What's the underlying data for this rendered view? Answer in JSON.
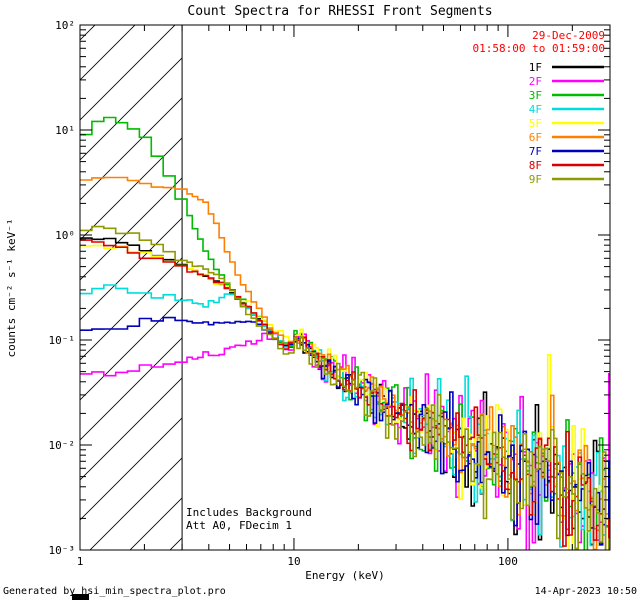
{
  "title": "Count Spectra for RHESSI Front Segments",
  "header": {
    "date": "29-Dec-2009",
    "time_range": "01:58:00 to 01:59:00",
    "color": "#ff0000"
  },
  "annotations": [
    "Includes Background",
    "Att A0, FDecim 1"
  ],
  "footer": {
    "left": "Generated by hsi_min_spectra_plot.pro",
    "right": "14-Apr-2023 10:50"
  },
  "chart_data": {
    "type": "line",
    "title": "Count Spectra for RHESSI Front Segments",
    "xlabel": "Energy (keV)",
    "ylabel": "counts cm⁻² s⁻¹ keV⁻¹",
    "xlog": true,
    "ylog": true,
    "grid": false,
    "legend_position": "top-right",
    "xlim": [
      1,
      300
    ],
    "ylim": [
      0.001,
      100
    ],
    "xticks": [
      {
        "v": 1,
        "label": "1"
      },
      {
        "v": 10,
        "label": "10"
      },
      {
        "v": 100,
        "label": "100"
      }
    ],
    "yticks": [
      {
        "v": 100,
        "label": "10²"
      },
      {
        "v": 10,
        "label": "10¹"
      },
      {
        "v": 1,
        "label": "10⁰"
      },
      {
        "v": 0.1,
        "label": "10⁻¹"
      },
      {
        "v": 0.01,
        "label": "10⁻²"
      },
      {
        "v": 0.001,
        "label": "10⁻³"
      }
    ],
    "hatch_region": {
      "x0": 1,
      "x1": 3
    },
    "bins": {
      "low": 18,
      "mid": 40,
      "high": 70,
      "break1": 3,
      "break2": 10
    },
    "noise": {
      "seed": 20091229,
      "lo_dex": 0.012,
      "hi_dex": 0.34,
      "start_keV": 7
    },
    "tail": [
      [
        5,
        0.3
      ],
      [
        6,
        0.21
      ],
      [
        7,
        0.15
      ],
      [
        8,
        0.115
      ],
      [
        9,
        0.09
      ],
      [
        9.5,
        0.085
      ],
      [
        10,
        0.105
      ],
      [
        11,
        0.1
      ],
      [
        12,
        0.078
      ],
      [
        14,
        0.058
      ],
      [
        17,
        0.044
      ],
      [
        20,
        0.035
      ],
      [
        25,
        0.027
      ],
      [
        30,
        0.021
      ],
      [
        40,
        0.0155
      ],
      [
        50,
        0.0125
      ],
      [
        70,
        0.009
      ],
      [
        100,
        0.0063
      ],
      [
        140,
        0.0048
      ],
      [
        200,
        0.0036
      ],
      [
        300,
        0.0026
      ]
    ],
    "series": [
      {
        "name": "1F",
        "color": "#000000",
        "tail_scale": 1.0,
        "noise_scale": 1.0,
        "low": [
          [
            1,
            0.95
          ],
          [
            1.4,
            0.9
          ],
          [
            2,
            0.72
          ],
          [
            2.6,
            0.58
          ],
          [
            3,
            0.52
          ],
          [
            4,
            0.4
          ],
          [
            5,
            0.3
          ]
        ]
      },
      {
        "name": "2F",
        "color": "#ff00ff",
        "tail_scale": 1.0,
        "noise_scale": 1.5,
        "low": [
          [
            1,
            0.05
          ],
          [
            1.5,
            0.048
          ],
          [
            2,
            0.055
          ],
          [
            2.6,
            0.06
          ],
          [
            3,
            0.065
          ],
          [
            4,
            0.072
          ],
          [
            5,
            0.08
          ],
          [
            6,
            0.09
          ],
          [
            7,
            0.105
          ]
        ]
      },
      {
        "name": "3F",
        "color": "#00bb00",
        "tail_scale": 1.05,
        "noise_scale": 1.1,
        "low": [
          [
            1,
            8
          ],
          [
            1.25,
            13
          ],
          [
            1.6,
            12
          ],
          [
            2,
            8.5
          ],
          [
            2.4,
            5
          ],
          [
            2.8,
            2.8
          ],
          [
            3,
            2.1
          ],
          [
            3.5,
            1.1
          ],
          [
            4,
            0.62
          ],
          [
            4.5,
            0.42
          ],
          [
            5,
            0.33
          ]
        ]
      },
      {
        "name": "4F",
        "color": "#00dddd",
        "tail_scale": 0.95,
        "noise_scale": 1.2,
        "low": [
          [
            1,
            0.28
          ],
          [
            1.4,
            0.31
          ],
          [
            2,
            0.29
          ],
          [
            2.6,
            0.26
          ],
          [
            3,
            0.24
          ],
          [
            4,
            0.21
          ],
          [
            5,
            0.28
          ]
        ]
      },
      {
        "name": "5F",
        "color": "#ffff00",
        "tail_scale": 1.1,
        "noise_scale": 1.15,
        "low": [
          [
            1,
            0.8
          ],
          [
            1.4,
            0.78
          ],
          [
            2,
            0.68
          ],
          [
            2.6,
            0.58
          ],
          [
            3,
            0.5
          ],
          [
            4,
            0.4
          ],
          [
            5,
            0.3
          ]
        ]
      },
      {
        "name": "6F",
        "color": "#ff8000",
        "tail_scale": 1.08,
        "noise_scale": 1.0,
        "low": [
          [
            1,
            3.1
          ],
          [
            1.3,
            3.6
          ],
          [
            1.7,
            3.4
          ],
          [
            2,
            3.1
          ],
          [
            2.5,
            2.9
          ],
          [
            3,
            2.7
          ],
          [
            3.5,
            2.4
          ],
          [
            4,
            1.9
          ],
          [
            4.5,
            1.1
          ],
          [
            5,
            0.6
          ],
          [
            5.5,
            0.42
          ],
          [
            6,
            0.3
          ],
          [
            7,
            0.19
          ]
        ]
      },
      {
        "name": "7F",
        "color": "#0000bb",
        "tail_scale": 0.92,
        "noise_scale": 0.95,
        "low": [
          [
            1,
            0.12
          ],
          [
            1.5,
            0.13
          ],
          [
            2,
            0.15
          ],
          [
            2.5,
            0.16
          ],
          [
            3,
            0.155
          ],
          [
            4,
            0.14
          ],
          [
            5,
            0.15
          ],
          [
            6,
            0.15
          ],
          [
            7,
            0.14
          ]
        ]
      },
      {
        "name": "8F",
        "color": "#dd0000",
        "tail_scale": 1.0,
        "noise_scale": 1.05,
        "low": [
          [
            1,
            0.88
          ],
          [
            1.4,
            0.82
          ],
          [
            2,
            0.62
          ],
          [
            2.6,
            0.56
          ],
          [
            3,
            0.5
          ],
          [
            4,
            0.4
          ],
          [
            5,
            0.31
          ]
        ]
      },
      {
        "name": "9F",
        "color": "#8f9a00",
        "tail_scale": 0.9,
        "noise_scale": 1.0,
        "low": [
          [
            1,
            1.1
          ],
          [
            1.3,
            1.2
          ],
          [
            1.8,
            1.0
          ],
          [
            2.2,
            0.85
          ],
          [
            2.6,
            0.7
          ],
          [
            3,
            0.58
          ],
          [
            4,
            0.46
          ],
          [
            5,
            0.33
          ]
        ]
      }
    ]
  }
}
